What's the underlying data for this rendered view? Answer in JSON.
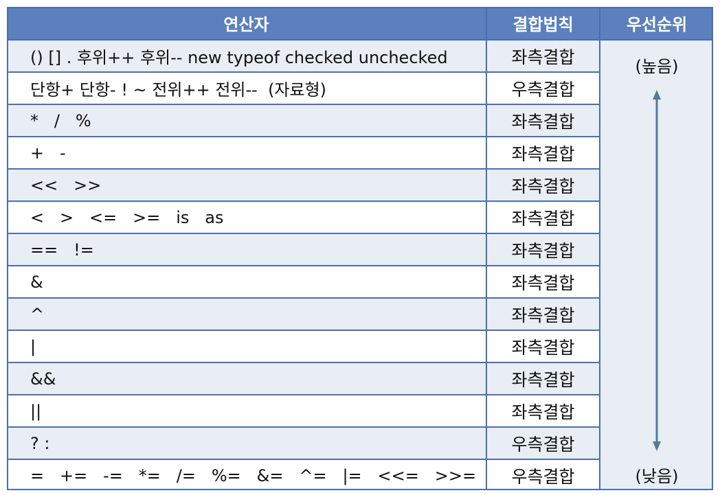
{
  "headers": {
    "operator": "연산자",
    "associativity": "결합법칙",
    "precedence": "우선순위"
  },
  "rows": [
    {
      "operators": "() [] . 후위++ 후위-- new typeof checked unchecked",
      "associativity": "좌측결합"
    },
    {
      "operators": "단항+ 단항- ! ~ 전위++ 전위--  (자료형)",
      "associativity": "우측결합"
    },
    {
      "operators": "*   /   %",
      "associativity": "좌측결합"
    },
    {
      "operators": "+   -",
      "associativity": "좌측결합"
    },
    {
      "operators": "<<   >>",
      "associativity": "좌측결합"
    },
    {
      "operators": "<   >   <=   >=   is   as",
      "associativity": "좌측결합"
    },
    {
      "operators": "==   !=",
      "associativity": "좌측결합"
    },
    {
      "operators": "&",
      "associativity": "좌측결합"
    },
    {
      "operators": "^",
      "associativity": "좌측결합"
    },
    {
      "operators": "|",
      "associativity": "좌측결합"
    },
    {
      "operators": "&&",
      "associativity": "좌측결합"
    },
    {
      "operators": "||",
      "associativity": "좌측결합"
    },
    {
      "operators": "? :",
      "associativity": "우측결합"
    },
    {
      "operators": "=   +=   -=   *=   /=   %=   &=   ^=   |=   <<=   >>=",
      "associativity": "우측결합"
    }
  ],
  "precedence": {
    "high": "(높음)",
    "low": "(낮음)",
    "arrow_icon": "double-headed-vertical-arrow"
  },
  "colors": {
    "header_bg": "#5b80bd",
    "header_text": "#ffffff",
    "row_shade": "#e9edf4",
    "border": "#4a6fad",
    "arrow": "#4f7d96"
  }
}
